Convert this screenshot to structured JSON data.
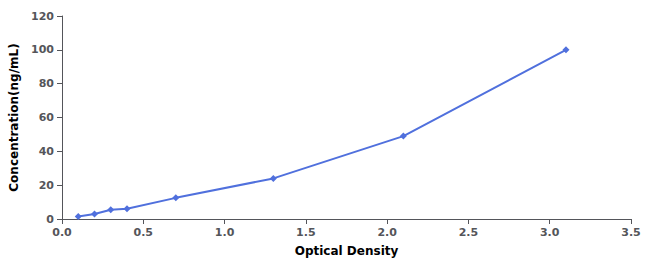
{
  "chart_data": {
    "type": "line",
    "xlabel": "Optical Density",
    "ylabel": "Concentration(ng/mL)",
    "x": [
      0.1,
      0.2,
      0.3,
      0.4,
      0.7,
      1.3,
      2.1,
      3.1
    ],
    "values": [
      1.5,
      3.0,
      5.5,
      6.0,
      12.5,
      24.0,
      49.0,
      100.0
    ],
    "marker": "diamond",
    "xlim": [
      0,
      3.5
    ],
    "xticks": [
      {
        "value": 0,
        "label": "0.0"
      },
      0.5,
      {
        "value": 1.0,
        "label": "1.0"
      },
      1.5,
      {
        "value": 2.0,
        "label": "2.0"
      },
      2.5,
      {
        "value": 3.0,
        "label": "3.0"
      },
      3.5
    ],
    "ylim": [
      0,
      120
    ],
    "yticks": [
      0,
      20,
      40,
      60,
      80,
      100,
      120
    ],
    "grid": false
  }
}
